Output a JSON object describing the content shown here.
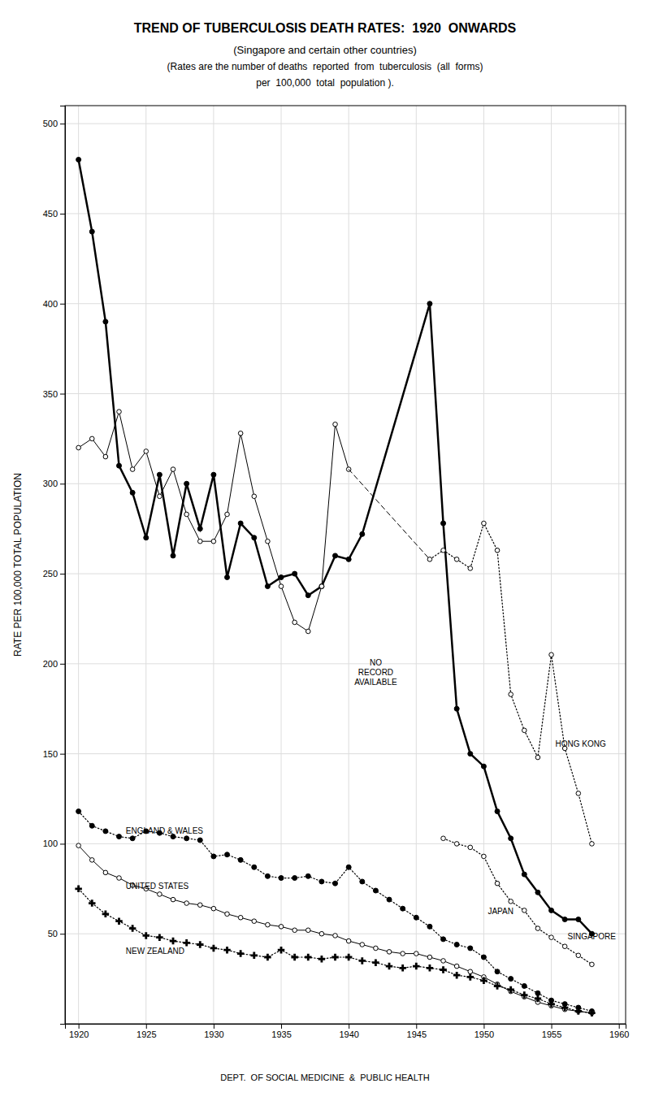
{
  "chart_data": {
    "type": "line",
    "title": "TREND OF TUBERCULOSIS DEATH RATES:  1920  ONWARDS",
    "subtitle": [
      "(Singapore and certain other countries)",
      "(Rates are the number of deaths  reported  from  tuberculosis  (all  forms)",
      "per  100,000  total  population )."
    ],
    "ylabel": "RATE PER 100,000 TOTAL POPULATION",
    "footer": "DEPT.  OF SOCIAL MEDICINE  &  PUBLIC HEALTH",
    "xlim": [
      1919,
      1960.5
    ],
    "ylim": [
      0,
      510
    ],
    "xticks": [
      1920,
      1925,
      1930,
      1935,
      1940,
      1945,
      1950,
      1955,
      1960
    ],
    "yticks": [
      50,
      100,
      150,
      200,
      250,
      300,
      350,
      400,
      450,
      500
    ],
    "grid": true,
    "color": "black",
    "series": [
      {
        "line_style": "thick",
        "marker": "filled-circle",
        "x": [
          1920,
          1921,
          1922,
          1923,
          1924,
          1925,
          1926,
          1927,
          1928,
          1929,
          1930,
          1931,
          1932,
          1933,
          1934,
          1935,
          1936,
          1937,
          1938,
          1939,
          1940,
          1941,
          1946,
          1947,
          1948,
          1949,
          1950,
          1951,
          1952,
          1953,
          1954,
          1955,
          1956,
          1957,
          1958
        ],
        "values": [
          480,
          440,
          390,
          310,
          295,
          270,
          305,
          260,
          300,
          275,
          305,
          248,
          278,
          270,
          243,
          248,
          250,
          238,
          243,
          260,
          258,
          272,
          400,
          278,
          175,
          150,
          143,
          118,
          103,
          83,
          73,
          63,
          58,
          58,
          50
        ]
      },
      {
        "line_style": "dashed",
        "marker": "none",
        "x": [
          1941,
          1946
        ],
        "values": [
          272,
          400
        ]
      },
      {
        "line_style": "solid",
        "marker": "open-circle",
        "x": [
          1920,
          1921,
          1922,
          1923,
          1924,
          1925,
          1926,
          1927,
          1928,
          1929,
          1930,
          1931,
          1932,
          1933,
          1934,
          1935,
          1936,
          1937,
          1938,
          1939,
          1940
        ],
        "values": [
          320,
          325,
          315,
          340,
          308,
          318,
          293,
          308,
          283,
          268,
          268,
          283,
          328,
          293,
          268,
          243,
          223,
          218,
          243,
          333,
          308
        ]
      },
      {
        "line_style": "dashed",
        "marker": "none",
        "x": [
          1940,
          1946
        ],
        "values": [
          308,
          258
        ]
      },
      {
        "line_style": "dotted",
        "marker": "open-circle",
        "x": [
          1946,
          1947,
          1948,
          1949,
          1950,
          1951,
          1952,
          1953,
          1954,
          1955,
          1956,
          1957,
          1958
        ],
        "values": [
          258,
          263,
          258,
          253,
          278,
          263,
          183,
          163,
          148,
          205,
          153,
          128,
          100
        ]
      },
      {
        "line_style": "dotted",
        "marker": "open-circle",
        "x": [
          1947,
          1948,
          1949,
          1950,
          1951,
          1952,
          1953,
          1954,
          1955,
          1956,
          1957,
          1958
        ],
        "values": [
          103,
          100,
          98,
          93,
          78,
          68,
          63,
          53,
          48,
          43,
          38,
          33
        ]
      },
      {
        "line_style": "dotted",
        "marker": "filled-circle",
        "x": [
          1920,
          1921,
          1922,
          1923,
          1924,
          1925,
          1926,
          1927,
          1928,
          1929,
          1930,
          1931,
          1932,
          1933,
          1934,
          1935,
          1936,
          1937,
          1938,
          1939,
          1940,
          1941,
          1942,
          1943,
          1944,
          1945,
          1946,
          1947,
          1948,
          1949,
          1950,
          1951,
          1952,
          1953,
          1954,
          1955,
          1956,
          1957,
          1958
        ],
        "values": [
          118,
          110,
          107,
          104,
          103,
          107,
          106,
          104,
          103,
          102,
          93,
          94,
          91,
          87,
          82,
          81,
          81,
          82,
          79,
          78,
          87,
          79,
          74,
          69,
          64,
          59,
          54,
          47,
          44,
          42,
          37,
          29,
          25,
          21,
          17,
          13,
          11,
          9,
          7
        ]
      },
      {
        "line_style": "solid",
        "marker": "open-circle",
        "x": [
          1920,
          1921,
          1922,
          1923,
          1924,
          1925,
          1926,
          1927,
          1928,
          1929,
          1930,
          1931,
          1932,
          1933,
          1934,
          1935,
          1936,
          1937,
          1938,
          1939,
          1940,
          1941,
          1942,
          1943,
          1944,
          1945,
          1946,
          1947,
          1948,
          1949,
          1950,
          1951,
          1952,
          1953,
          1954,
          1955,
          1956,
          1957,
          1958
        ],
        "values": [
          99,
          91,
          84,
          81,
          77,
          75,
          72,
          69,
          67,
          66,
          64,
          61,
          59,
          57,
          55,
          54,
          52,
          52,
          50,
          49,
          46,
          44,
          42,
          40,
          39,
          39,
          37,
          35,
          32,
          29,
          26,
          22,
          18,
          15,
          12,
          10,
          8,
          7,
          6
        ]
      },
      {
        "line_style": "dotted",
        "marker": "plus",
        "x": [
          1920,
          1921,
          1922,
          1923,
          1924,
          1925,
          1926,
          1927,
          1928,
          1929,
          1930,
          1931,
          1932,
          1933,
          1934,
          1935,
          1936,
          1937,
          1938,
          1939,
          1940,
          1941,
          1942,
          1943,
          1944,
          1945,
          1946,
          1947,
          1948,
          1949,
          1950,
          1951,
          1952,
          1953,
          1954,
          1955,
          1956,
          1957,
          1958
        ],
        "values": [
          75,
          67,
          61,
          57,
          53,
          49,
          48,
          46,
          45,
          44,
          42,
          41,
          39,
          38,
          37,
          41,
          37,
          37,
          36,
          37,
          37,
          35,
          34,
          32,
          31,
          32,
          31,
          30,
          27,
          26,
          24,
          21,
          19,
          16,
          14,
          11,
          9,
          7,
          6
        ]
      }
    ],
    "annotations": [
      {
        "text": "NO\nRECORD\nAVAILABLE",
        "x": 1942.0,
        "y": 195
      },
      {
        "text": "SINGAPORE",
        "x": 1956.2,
        "y": 48
      },
      {
        "text": "HONG KONG",
        "x": 1955.3,
        "y": 155
      },
      {
        "text": "JAPAN",
        "x": 1950.3,
        "y": 62
      },
      {
        "text": "ENGLAND & WALES",
        "x": 1923.5,
        "y": 107
      },
      {
        "text": "UNITED STATES",
        "x": 1923.5,
        "y": 76
      },
      {
        "text": "NEW ZEALAND",
        "x": 1923.5,
        "y": 40
      }
    ]
  }
}
